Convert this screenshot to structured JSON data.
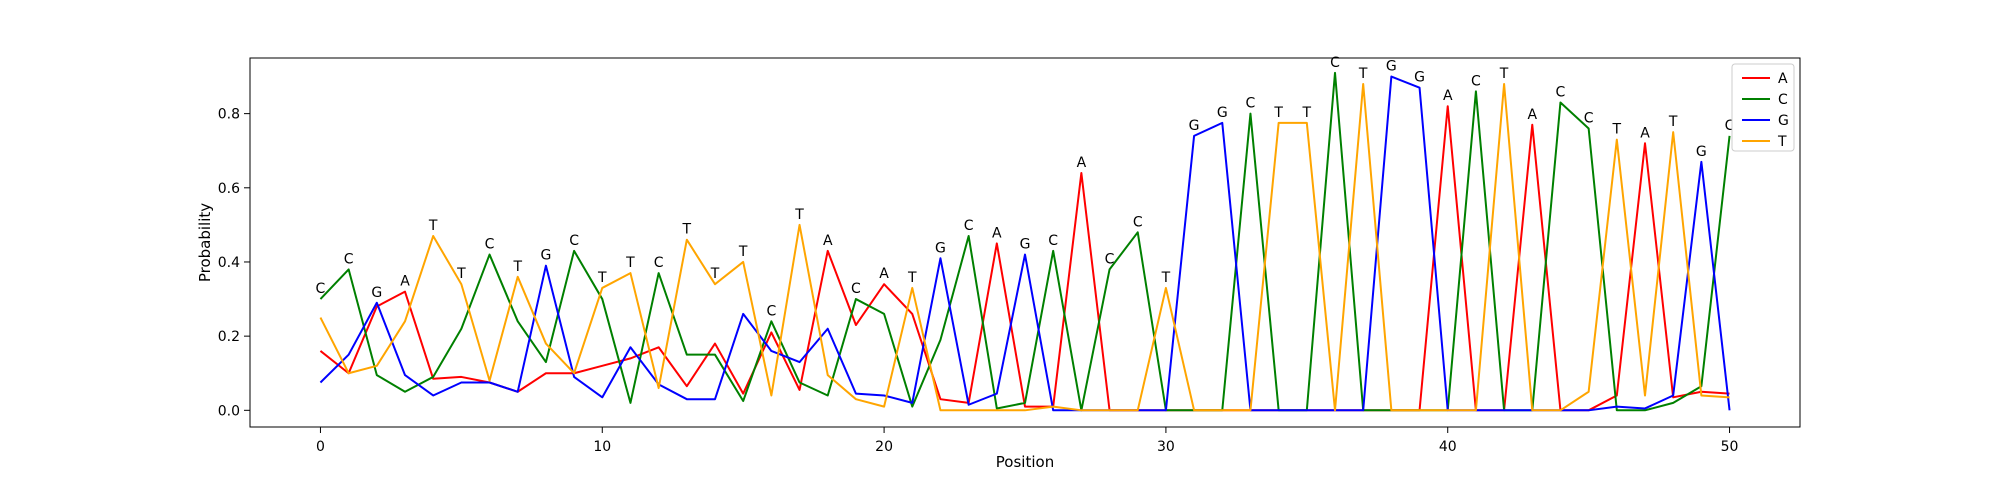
{
  "chart_data": {
    "type": "line",
    "title": "",
    "xlabel": "Position",
    "ylabel": "Probability",
    "xlim": [
      -2.5,
      52.5
    ],
    "ylim": [
      -0.045,
      0.95
    ],
    "xticks": [
      0,
      10,
      20,
      30,
      40,
      50
    ],
    "yticks": [
      0.0,
      0.2,
      0.4,
      0.6,
      0.8
    ],
    "ytick_labels": [
      "0.0",
      "0.2",
      "0.4",
      "0.6",
      "0.8"
    ],
    "grid": false,
    "legend_position": "top-right",
    "x": [
      0,
      1,
      2,
      3,
      4,
      5,
      6,
      7,
      8,
      9,
      10,
      11,
      12,
      13,
      14,
      15,
      16,
      17,
      18,
      19,
      20,
      21,
      22,
      23,
      24,
      25,
      26,
      27,
      28,
      29,
      30,
      31,
      32,
      33,
      34,
      35,
      36,
      37,
      38,
      39,
      40,
      41,
      42,
      43,
      44,
      45,
      46,
      47,
      48,
      49,
      50
    ],
    "series": [
      {
        "name": "A",
        "color": "#ff0000",
        "values": [
          0.16,
          0.1,
          0.28,
          0.32,
          0.085,
          0.09,
          0.075,
          0.05,
          0.1,
          0.1,
          0.12,
          0.14,
          0.17,
          0.065,
          0.18,
          0.045,
          0.21,
          0.055,
          0.43,
          0.23,
          0.34,
          0.26,
          0.03,
          0.02,
          0.45,
          0.01,
          0.01,
          0.64,
          0.0,
          0.0,
          0.0,
          0.0,
          0.0,
          0.0,
          0.0,
          0.0,
          0.0,
          0.0,
          0.0,
          0.0,
          0.82,
          0.0,
          0.0,
          0.77,
          0.0,
          0.0,
          0.04,
          0.72,
          0.035,
          0.05,
          0.045
        ]
      },
      {
        "name": "C",
        "color": "#008000",
        "values": [
          0.3,
          0.38,
          0.095,
          0.05,
          0.09,
          0.22,
          0.42,
          0.24,
          0.13,
          0.43,
          0.3,
          0.02,
          0.37,
          0.15,
          0.15,
          0.025,
          0.24,
          0.075,
          0.04,
          0.3,
          0.26,
          0.01,
          0.19,
          0.47,
          0.005,
          0.02,
          0.43,
          0.0,
          0.38,
          0.48,
          0.0,
          0.0,
          0.0,
          0.8,
          0.0,
          0.0,
          0.91,
          0.0,
          0.0,
          0.0,
          0.0,
          0.86,
          0.0,
          0.0,
          0.83,
          0.76,
          0.0,
          0.0,
          0.02,
          0.065,
          0.74
        ]
      },
      {
        "name": "G",
        "color": "#0000ff",
        "values": [
          0.075,
          0.15,
          0.29,
          0.095,
          0.04,
          0.075,
          0.075,
          0.05,
          0.39,
          0.09,
          0.035,
          0.17,
          0.07,
          0.03,
          0.03,
          0.26,
          0.16,
          0.13,
          0.22,
          0.045,
          0.04,
          0.02,
          0.41,
          0.015,
          0.045,
          0.42,
          0.0,
          0.0,
          0.0,
          0.0,
          0.0,
          0.74,
          0.775,
          0.0,
          0.0,
          0.0,
          0.0,
          0.0,
          0.9,
          0.87,
          0.0,
          0.0,
          0.0,
          0.0,
          0.0,
          0.0,
          0.01,
          0.005,
          0.04,
          0.67,
          0.0
        ]
      },
      {
        "name": "T",
        "color": "#ffa500",
        "values": [
          0.25,
          0.1,
          0.12,
          0.24,
          0.47,
          0.34,
          0.08,
          0.36,
          0.18,
          0.1,
          0.33,
          0.37,
          0.06,
          0.46,
          0.34,
          0.4,
          0.04,
          0.5,
          0.095,
          0.03,
          0.01,
          0.33,
          0.0,
          0.0,
          0.0,
          0.0,
          0.01,
          0.0,
          0.0,
          0.0,
          0.33,
          0.0,
          0.0,
          0.0,
          0.775,
          0.775,
          0.0,
          0.88,
          0.0,
          0.0,
          0.0,
          0.0,
          0.88,
          0.0,
          0.0,
          0.05,
          0.73,
          0.04,
          0.75,
          0.04,
          0.035
        ]
      }
    ],
    "annotations": [
      "C",
      "C",
      "G",
      "A",
      "T",
      "T",
      "C",
      "T",
      "G",
      "C",
      "T",
      "T",
      "C",
      "T",
      "T",
      "T",
      "C",
      "T",
      "A",
      "C",
      "A",
      "T",
      "G",
      "C",
      "A",
      "G",
      "C",
      "A",
      "C",
      "C",
      "T",
      "G",
      "G",
      "C",
      "T",
      "T",
      "C",
      "T",
      "G",
      "G",
      "A",
      "C",
      "T",
      "A",
      "C",
      "C",
      "T",
      "A",
      "T",
      "G",
      "C"
    ]
  }
}
